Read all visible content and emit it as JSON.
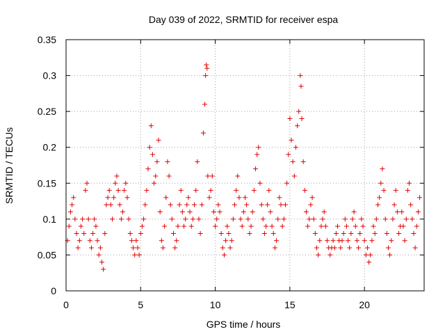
{
  "chart_data": {
    "type": "scatter",
    "title": "Day 039 of 2022, SRMTID for receiver espa",
    "xlabel": "GPS time / hours",
    "ylabel": "SRMTID / TECUs",
    "xlim": [
      0,
      24
    ],
    "ylim": [
      0,
      0.35
    ],
    "xticks": [
      0,
      5,
      10,
      15,
      20
    ],
    "xtick_labels": [
      "0",
      "5",
      "10",
      "15",
      "20"
    ],
    "yticks": [
      0,
      0.05,
      0.1,
      0.15,
      0.2,
      0.25,
      0.3,
      0.35
    ],
    "ytick_labels": [
      "0",
      "0.05",
      "0.1",
      "0.15",
      "0.2",
      "0.25",
      "0.3",
      "0.35"
    ],
    "grid": true,
    "marker": "+",
    "series": [
      {
        "name": "SRMTID",
        "color": "#e00000",
        "points": [
          [
            0.1,
            0.07
          ],
          [
            0.2,
            0.09
          ],
          [
            0.3,
            0.11
          ],
          [
            0.4,
            0.12
          ],
          [
            0.5,
            0.13
          ],
          [
            0.6,
            0.1
          ],
          [
            0.7,
            0.08
          ],
          [
            0.8,
            0.06
          ],
          [
            0.9,
            0.07
          ],
          [
            1.0,
            0.09
          ],
          [
            1.1,
            0.1
          ],
          [
            1.2,
            0.08
          ],
          [
            1.3,
            0.14
          ],
          [
            1.4,
            0.15
          ],
          [
            1.5,
            0.1
          ],
          [
            1.6,
            0.07
          ],
          [
            1.7,
            0.06
          ],
          [
            1.8,
            0.08
          ],
          [
            1.9,
            0.1
          ],
          [
            2.0,
            0.09
          ],
          [
            2.1,
            0.07
          ],
          [
            2.2,
            0.05
          ],
          [
            2.3,
            0.06
          ],
          [
            2.4,
            0.04
          ],
          [
            2.5,
            0.03
          ],
          [
            2.6,
            0.08
          ],
          [
            2.7,
            0.12
          ],
          [
            2.8,
            0.13
          ],
          [
            2.9,
            0.14
          ],
          [
            3.0,
            0.12
          ],
          [
            3.1,
            0.1
          ],
          [
            3.2,
            0.13
          ],
          [
            3.3,
            0.15
          ],
          [
            3.4,
            0.16
          ],
          [
            3.5,
            0.14
          ],
          [
            3.6,
            0.12
          ],
          [
            3.7,
            0.1
          ],
          [
            3.8,
            0.11
          ],
          [
            3.9,
            0.14
          ],
          [
            4.0,
            0.15
          ],
          [
            4.1,
            0.13
          ],
          [
            4.2,
            0.1
          ],
          [
            4.3,
            0.08
          ],
          [
            4.4,
            0.07
          ],
          [
            4.5,
            0.06
          ],
          [
            4.6,
            0.05
          ],
          [
            4.7,
            0.07
          ],
          [
            4.8,
            0.06
          ],
          [
            4.9,
            0.05
          ],
          [
            5.0,
            0.08
          ],
          [
            5.1,
            0.09
          ],
          [
            5.2,
            0.1
          ],
          [
            5.3,
            0.12
          ],
          [
            5.4,
            0.14
          ],
          [
            5.5,
            0.17
          ],
          [
            5.6,
            0.2
          ],
          [
            5.7,
            0.23
          ],
          [
            5.8,
            0.19
          ],
          [
            5.9,
            0.15
          ],
          [
            6.0,
            0.16
          ],
          [
            6.1,
            0.18
          ],
          [
            6.2,
            0.21
          ],
          [
            6.3,
            0.11
          ],
          [
            6.4,
            0.07
          ],
          [
            6.5,
            0.06
          ],
          [
            6.6,
            0.09
          ],
          [
            6.7,
            0.13
          ],
          [
            6.8,
            0.18
          ],
          [
            6.9,
            0.16
          ],
          [
            7.0,
            0.12
          ],
          [
            7.1,
            0.1
          ],
          [
            7.2,
            0.08
          ],
          [
            7.3,
            0.06
          ],
          [
            7.4,
            0.07
          ],
          [
            7.5,
            0.09
          ],
          [
            7.6,
            0.12
          ],
          [
            7.7,
            0.14
          ],
          [
            7.8,
            0.11
          ],
          [
            7.9,
            0.09
          ],
          [
            8.0,
            0.1
          ],
          [
            8.1,
            0.12
          ],
          [
            8.2,
            0.13
          ],
          [
            8.3,
            0.11
          ],
          [
            8.4,
            0.09
          ],
          [
            8.5,
            0.1
          ],
          [
            8.6,
            0.12
          ],
          [
            8.7,
            0.14
          ],
          [
            8.8,
            0.18
          ],
          [
            8.9,
            0.1
          ],
          [
            9.0,
            0.08
          ],
          [
            9.1,
            0.12
          ],
          [
            9.2,
            0.22
          ],
          [
            9.3,
            0.26
          ],
          [
            9.35,
            0.3
          ],
          [
            9.4,
            0.315
          ],
          [
            9.45,
            0.31
          ],
          [
            9.5,
            0.16
          ],
          [
            9.6,
            0.13
          ],
          [
            9.7,
            0.14
          ],
          [
            9.8,
            0.16
          ],
          [
            9.9,
            0.11
          ],
          [
            10.0,
            0.09
          ],
          [
            10.1,
            0.1
          ],
          [
            10.2,
            0.12
          ],
          [
            10.3,
            0.11
          ],
          [
            10.4,
            0.08
          ],
          [
            10.5,
            0.06
          ],
          [
            10.6,
            0.05
          ],
          [
            10.7,
            0.07
          ],
          [
            10.8,
            0.09
          ],
          [
            10.9,
            0.08
          ],
          [
            11.0,
            0.06
          ],
          [
            11.1,
            0.07
          ],
          [
            11.2,
            0.1
          ],
          [
            11.3,
            0.12
          ],
          [
            11.4,
            0.14
          ],
          [
            11.5,
            0.16
          ],
          [
            11.6,
            0.13
          ],
          [
            11.7,
            0.1
          ],
          [
            11.8,
            0.09
          ],
          [
            11.9,
            0.11
          ],
          [
            12.0,
            0.13
          ],
          [
            12.1,
            0.12
          ],
          [
            12.2,
            0.1
          ],
          [
            12.3,
            0.08
          ],
          [
            12.4,
            0.09
          ],
          [
            12.5,
            0.11
          ],
          [
            12.6,
            0.14
          ],
          [
            12.7,
            0.17
          ],
          [
            12.8,
            0.19
          ],
          [
            12.9,
            0.2
          ],
          [
            13.0,
            0.15
          ],
          [
            13.1,
            0.12
          ],
          [
            13.2,
            0.1
          ],
          [
            13.3,
            0.08
          ],
          [
            13.4,
            0.09
          ],
          [
            13.5,
            0.12
          ],
          [
            13.6,
            0.14
          ],
          [
            13.7,
            0.11
          ],
          [
            13.8,
            0.09
          ],
          [
            13.9,
            0.08
          ],
          [
            14.0,
            0.06
          ],
          [
            14.1,
            0.07
          ],
          [
            14.2,
            0.1
          ],
          [
            14.3,
            0.13
          ],
          [
            14.4,
            0.12
          ],
          [
            14.5,
            0.09
          ],
          [
            14.6,
            0.1
          ],
          [
            14.7,
            0.12
          ],
          [
            14.8,
            0.15
          ],
          [
            14.9,
            0.19
          ],
          [
            15.0,
            0.24
          ],
          [
            15.1,
            0.21
          ],
          [
            15.2,
            0.18
          ],
          [
            15.3,
            0.16
          ],
          [
            15.4,
            0.2
          ],
          [
            15.5,
            0.23
          ],
          [
            15.6,
            0.25
          ],
          [
            15.7,
            0.3
          ],
          [
            15.75,
            0.285
          ],
          [
            15.8,
            0.24
          ],
          [
            15.9,
            0.18
          ],
          [
            16.0,
            0.14
          ],
          [
            16.1,
            0.11
          ],
          [
            16.2,
            0.09
          ],
          [
            16.3,
            0.1
          ],
          [
            16.4,
            0.12
          ],
          [
            16.5,
            0.13
          ],
          [
            16.6,
            0.1
          ],
          [
            16.7,
            0.08
          ],
          [
            16.8,
            0.06
          ],
          [
            16.9,
            0.05
          ],
          [
            17.0,
            0.07
          ],
          [
            17.1,
            0.09
          ],
          [
            17.2,
            0.1
          ],
          [
            17.3,
            0.11
          ],
          [
            17.4,
            0.09
          ],
          [
            17.5,
            0.07
          ],
          [
            17.6,
            0.06
          ],
          [
            17.7,
            0.05
          ],
          [
            17.8,
            0.06
          ],
          [
            17.9,
            0.07
          ],
          [
            18.0,
            0.06
          ],
          [
            18.1,
            0.08
          ],
          [
            18.2,
            0.09
          ],
          [
            18.3,
            0.07
          ],
          [
            18.4,
            0.06
          ],
          [
            18.5,
            0.07
          ],
          [
            18.6,
            0.08
          ],
          [
            18.7,
            0.1
          ],
          [
            18.8,
            0.09
          ],
          [
            18.9,
            0.07
          ],
          [
            19.0,
            0.06
          ],
          [
            19.1,
            0.08
          ],
          [
            19.2,
            0.1
          ],
          [
            19.3,
            0.11
          ],
          [
            19.4,
            0.09
          ],
          [
            19.5,
            0.07
          ],
          [
            19.6,
            0.06
          ],
          [
            19.7,
            0.08
          ],
          [
            19.8,
            0.1
          ],
          [
            19.9,
            0.09
          ],
          [
            20.0,
            0.07
          ],
          [
            20.1,
            0.05
          ],
          [
            20.2,
            0.06
          ],
          [
            20.3,
            0.04
          ],
          [
            20.4,
            0.05
          ],
          [
            20.5,
            0.07
          ],
          [
            20.6,
            0.09
          ],
          [
            20.7,
            0.08
          ],
          [
            20.8,
            0.1
          ],
          [
            20.9,
            0.12
          ],
          [
            21.0,
            0.13
          ],
          [
            21.1,
            0.15
          ],
          [
            21.2,
            0.17
          ],
          [
            21.3,
            0.14
          ],
          [
            21.4,
            0.1
          ],
          [
            21.5,
            0.08
          ],
          [
            21.6,
            0.06
          ],
          [
            21.7,
            0.05
          ],
          [
            21.8,
            0.07
          ],
          [
            21.9,
            0.1
          ],
          [
            22.0,
            0.12
          ],
          [
            22.1,
            0.14
          ],
          [
            22.2,
            0.11
          ],
          [
            22.3,
            0.08
          ],
          [
            22.4,
            0.09
          ],
          [
            22.5,
            0.11
          ],
          [
            22.6,
            0.09
          ],
          [
            22.7,
            0.07
          ],
          [
            22.8,
            0.1
          ],
          [
            22.9,
            0.14
          ],
          [
            23.0,
            0.15
          ],
          [
            23.1,
            0.12
          ],
          [
            23.2,
            0.1
          ],
          [
            23.3,
            0.08
          ],
          [
            23.4,
            0.06
          ],
          [
            23.5,
            0.09
          ],
          [
            23.6,
            0.11
          ],
          [
            23.7,
            0.13
          ]
        ]
      }
    ]
  }
}
